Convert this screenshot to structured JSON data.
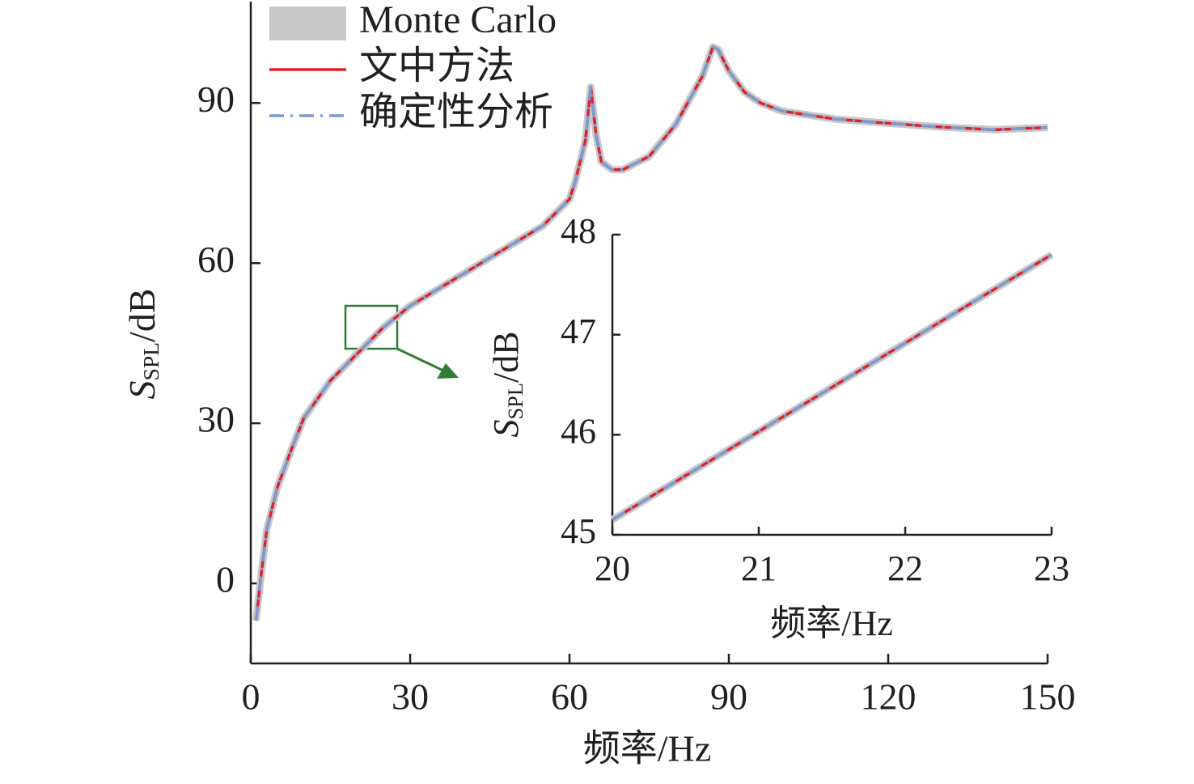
{
  "chart_data": [
    {
      "type": "line",
      "xlabel": "频率/Hz",
      "ylabel": {
        "main": "S",
        "sub": "SPL",
        "unit": "/dB"
      },
      "x": [
        1,
        2,
        3,
        5,
        8,
        10,
        15,
        20,
        25,
        30,
        40,
        50,
        55,
        58,
        60,
        61,
        62,
        63,
        64,
        65,
        66,
        68,
        70,
        75,
        80,
        85,
        87,
        88,
        90,
        93,
        96,
        100,
        110,
        120,
        130,
        140,
        147,
        150
      ],
      "series": [
        {
          "name": "Monte Carlo",
          "color": "#c8c8c8",
          "values": [
            -7,
            2,
            10,
            18,
            26,
            31,
            38,
            43,
            48,
            52,
            58,
            64,
            67,
            70,
            72,
            75,
            79,
            83,
            93,
            84,
            79,
            77.5,
            77.5,
            80,
            86,
            95,
            100.5,
            100,
            96,
            92,
            90,
            88.5,
            87,
            86.2,
            85.5,
            85,
            85.3,
            85.4
          ]
        },
        {
          "name": "文中方法",
          "color": "#e0202a",
          "values": [
            -7,
            2,
            10,
            18,
            26,
            31,
            38,
            43,
            48,
            52,
            58,
            64,
            67,
            70,
            72,
            75,
            79,
            83,
            93,
            84,
            79,
            77.5,
            77.5,
            80,
            86,
            95,
            100.5,
            100,
            96,
            92,
            90,
            88.5,
            87,
            86.2,
            85.5,
            85,
            85.3,
            85.4
          ]
        },
        {
          "name": "确定性分析",
          "color": "#7b9bd1",
          "values": [
            -7,
            2,
            10,
            18,
            26,
            31,
            38,
            43,
            48,
            52,
            58,
            64,
            67,
            70,
            72,
            75,
            79,
            83,
            93,
            84,
            79,
            77.5,
            77.5,
            80,
            86,
            95,
            100.5,
            100,
            96,
            92,
            90,
            88.5,
            87,
            86.2,
            85.5,
            85,
            85.3,
            85.4
          ]
        }
      ],
      "xlim": [
        0,
        150
      ],
      "xticks": [
        0,
        30,
        60,
        90,
        120,
        150
      ],
      "ylim": [
        -15,
        109
      ],
      "yticks": [
        0,
        30,
        60,
        90
      ]
    },
    {
      "type": "line",
      "xlabel": "频率/Hz",
      "ylabel": {
        "main": "S",
        "sub": "SPL",
        "unit": "/dB"
      },
      "x": [
        20,
        23
      ],
      "series": [
        {
          "color": "#c8c8c8",
          "values": [
            45.15,
            47.8
          ]
        },
        {
          "color": "#e0202a",
          "values": [
            45.15,
            47.8
          ]
        },
        {
          "color": "#7b9bd1",
          "values": [
            45.15,
            47.8
          ]
        }
      ],
      "xlim": [
        20,
        23
      ],
      "xticks": [
        20,
        21,
        22,
        23
      ],
      "ylim": [
        45,
        48
      ],
      "yticks": [
        45,
        46,
        47,
        48
      ]
    }
  ]
}
